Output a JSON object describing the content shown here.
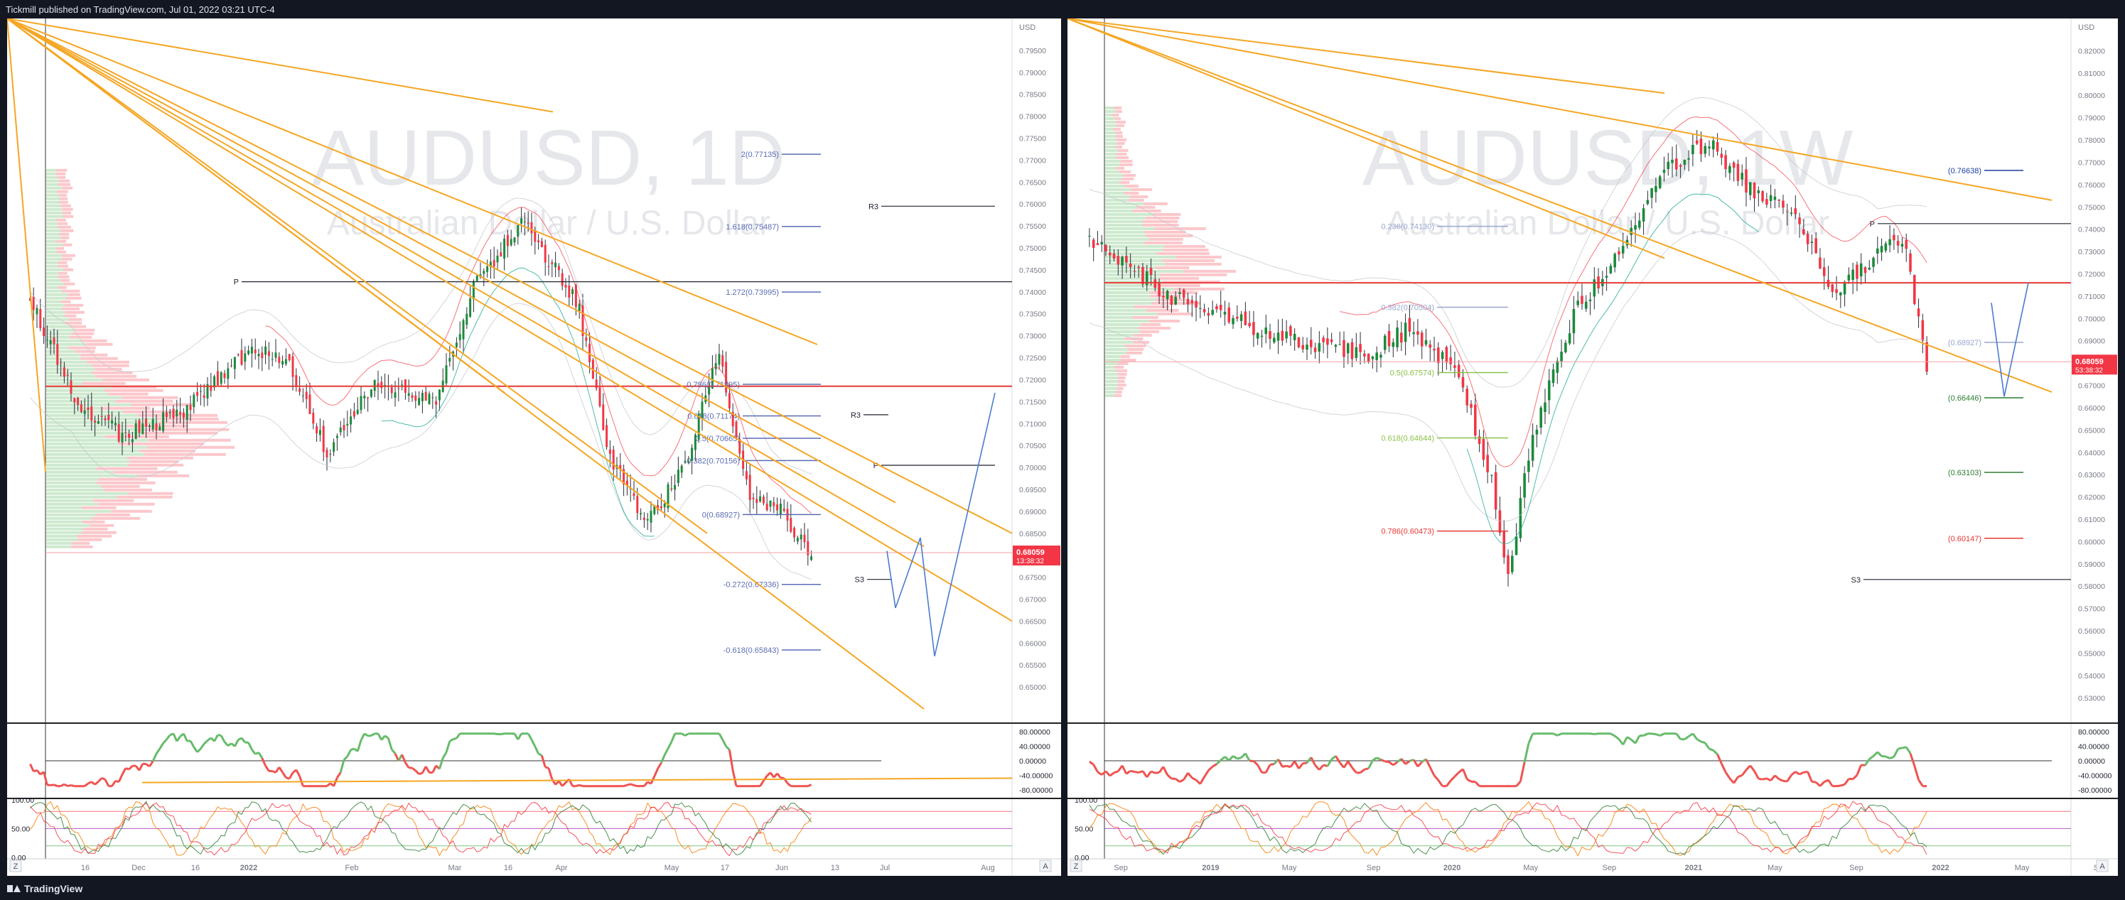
{
  "header": {
    "publisher_line": "Tickmill published on TradingView.com, Jul 01, 2022 03:21 UTC-4"
  },
  "footer": {
    "brand": "TradingView"
  },
  "colors": {
    "bull": "#089981",
    "bull_body": "#1b8a3a",
    "bear": "#f23645",
    "fib_line": "#5b6cb4",
    "trendline": "#f5a623",
    "projection": "#4a7bd0",
    "hline_red": "#e53935"
  },
  "chart_data": [
    {
      "type": "candlestick",
      "symbol": "AUDUSD",
      "interval": "1D",
      "description": "Australian Dollar / U.S. Dollar",
      "currency": "USD",
      "ylim": [
        0.645,
        0.8
      ],
      "price_ticks": [
        "0.79500",
        "0.79000",
        "0.78500",
        "0.78000",
        "0.77500",
        "0.77000",
        "0.76500",
        "0.76000",
        "0.75500",
        "0.75000",
        "0.74500",
        "0.74000",
        "0.73500",
        "0.73000",
        "0.72500",
        "0.72000",
        "0.71500",
        "0.71000",
        "0.70500",
        "0.70000",
        "0.69500",
        "0.69000",
        "0.68500",
        "0.68000",
        "0.67500",
        "0.67000",
        "0.66500",
        "0.66000",
        "0.65500",
        "0.65000"
      ],
      "time_labels": [
        "16",
        "Dec",
        "16",
        "2022",
        "Feb",
        "Mar",
        "16",
        "Apr",
        "May",
        "17",
        "Jun",
        "13",
        "Jul",
        "Aug"
      ],
      "last_price": "0.68059",
      "countdown": "13:38:32",
      "fib_levels": [
        {
          "label": "2(0.77135)",
          "value": 0.77135
        },
        {
          "label": "1.618(0.75487)",
          "value": 0.75487
        },
        {
          "label": "1.272(0.73995)",
          "value": 0.73995
        },
        {
          "label": "0.786(0.71895)",
          "value": 0.71895
        },
        {
          "label": "0.618(0.71174)",
          "value": 0.71174
        },
        {
          "label": "0.5(0.70665)",
          "value": 0.70665
        },
        {
          "label": "0.382(0.70156)",
          "value": 0.70156
        },
        {
          "label": "0(0.68927)",
          "value": 0.68927
        },
        {
          "label": "-0.272(0.67336)",
          "value": 0.67336
        },
        {
          "label": "-0.618(0.65843)",
          "value": 0.65843
        }
      ],
      "pivot_labels": [
        {
          "label": "R3",
          "value": 0.7595
        },
        {
          "label": "P",
          "value": 0.7423
        },
        {
          "label": "R3",
          "value": 0.712
        },
        {
          "label": "P",
          "value": 0.7005
        },
        {
          "label": "S3",
          "value": 0.6745
        }
      ],
      "red_hline": 0.7185,
      "rsi": {
        "ticks": [
          "80.00000",
          "40.00000",
          "0.00000",
          "-40.00000",
          "-80.00000"
        ]
      },
      "stoch": {
        "ticks": [
          "100.00",
          "50.00",
          "0.00"
        ]
      }
    },
    {
      "type": "candlestick",
      "symbol": "AUDUSD",
      "interval": "1W",
      "description": "Australian Dollar / U.S. Dollar",
      "currency": "USD",
      "ylim": [
        0.525,
        0.83
      ],
      "price_ticks": [
        "0.82000",
        "0.81000",
        "0.80000",
        "0.79000",
        "0.78000",
        "0.77000",
        "0.76000",
        "0.75000",
        "0.74000",
        "0.73000",
        "0.72000",
        "0.71000",
        "0.70000",
        "0.69000",
        "0.68000",
        "0.67000",
        "0.66000",
        "0.65000",
        "0.64000",
        "0.63000",
        "0.62000",
        "0.61000",
        "0.60000",
        "0.59000",
        "0.58000",
        "0.57000",
        "0.56000",
        "0.55000",
        "0.54000",
        "0.53000"
      ],
      "time_labels": [
        "Sep",
        "2019",
        "May",
        "Sep",
        "2020",
        "May",
        "Sep",
        "2021",
        "May",
        "Sep",
        "2022",
        "May",
        "Sep"
      ],
      "last_price": "0.68059",
      "countdown": "53:38:32",
      "fib_levels": [
        {
          "label": "0.236(0.74130)",
          "value": 0.7413
        },
        {
          "label": "0.382(0.70504)",
          "value": 0.70504
        },
        {
          "label": "0.5(0.67574)",
          "value": 0.67574
        },
        {
          "label": "0.618(0.64644)",
          "value": 0.64644
        },
        {
          "label": "0.786(0.60473)",
          "value": 0.60473
        },
        {
          "label": "(0.76638)",
          "value": 0.76638
        },
        {
          "label": "(0.68927)",
          "value": 0.68927
        },
        {
          "label": "(0.66446)",
          "value": 0.66446
        },
        {
          "label": "(0.63103)",
          "value": 0.63103
        },
        {
          "label": "(0.60147)",
          "value": 0.60147
        }
      ],
      "pivot_labels": [
        {
          "label": "P",
          "value": 0.7425
        },
        {
          "label": "S3",
          "value": 0.583
        }
      ],
      "red_hline": 0.716,
      "rsi": {
        "ticks": [
          "80.00000",
          "40.00000",
          "0.00000",
          "-40.00000",
          "-80.00000"
        ]
      },
      "stoch": {
        "ticks": [
          "100.00",
          "50.00",
          "0.00"
        ]
      }
    }
  ]
}
